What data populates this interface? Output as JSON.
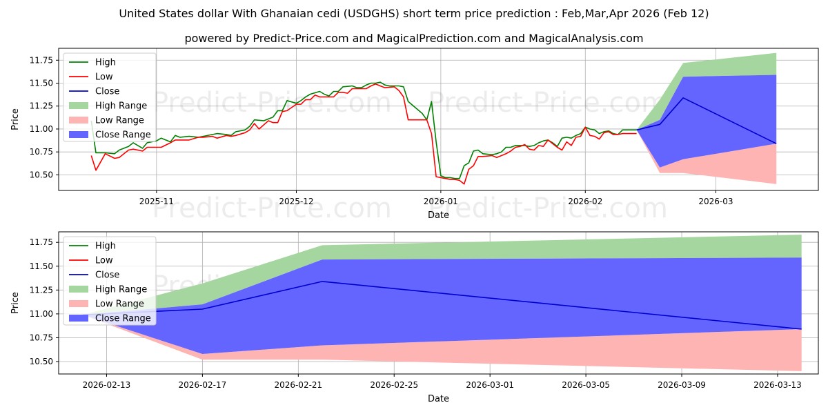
{
  "title": "United States dollar With Ghanaian cedi (USDGHS) short term price prediction : Feb,Mar,Apr 2026 (Feb 12)",
  "subtitle": "powered by Predict-Price.com and MagicalPrediction.com and MagicalAnalysis.com",
  "watermark": "Predict-Price.com",
  "colors": {
    "high": "#008000",
    "low": "#ff0000",
    "close": "#0000cd",
    "high_range": "#a5d6a0",
    "low_range": "#ffb4b4",
    "close_range": "#6464ff",
    "grid": "#b0b0b0"
  },
  "chart_data": [
    {
      "type": "line",
      "name": "history-and-forecast",
      "xlabel": "Date",
      "ylabel": "Price",
      "ylim": [
        10.33,
        11.88
      ],
      "xlim": [
        "2025-10-11",
        "2026-03-23"
      ],
      "grid": true,
      "legend_position": "top-left",
      "yticks": [
        10.5,
        10.75,
        11.0,
        11.25,
        11.5,
        11.75
      ],
      "ytick_labels": [
        "10.50",
        "10.75",
        "11.00",
        "11.25",
        "11.50",
        "11.75"
      ],
      "xticks": [
        "2025-11-01",
        "2025-12-01",
        "2026-01-01",
        "2026-02-01",
        "2026-03-01"
      ],
      "xtick_labels": [
        "2025-11",
        "2025-12",
        "2026-01",
        "2026-02",
        "2026-03"
      ],
      "legend": [
        "High",
        "Low",
        "Close",
        "High Range",
        "Low Range",
        "Close Range"
      ],
      "high_series": [
        [
          "2025-10-18",
          11.09
        ],
        [
          "2025-10-19",
          10.74
        ],
        [
          "2025-10-21",
          10.74
        ],
        [
          "2025-10-23",
          10.73
        ],
        [
          "2025-10-24",
          10.77
        ],
        [
          "2025-10-26",
          10.81
        ],
        [
          "2025-10-27",
          10.85
        ],
        [
          "2025-10-29",
          10.79
        ],
        [
          "2025-10-30",
          10.85
        ],
        [
          "2025-11-01",
          10.87
        ],
        [
          "2025-11-02",
          10.9
        ],
        [
          "2025-11-04",
          10.86
        ],
        [
          "2025-11-05",
          10.93
        ],
        [
          "2025-11-06",
          10.91
        ],
        [
          "2025-11-08",
          10.92
        ],
        [
          "2025-11-10",
          10.91
        ],
        [
          "2025-11-11",
          10.92
        ],
        [
          "2025-11-13",
          10.94
        ],
        [
          "2025-11-14",
          10.95
        ],
        [
          "2025-11-16",
          10.94
        ],
        [
          "2025-11-17",
          10.93
        ],
        [
          "2025-11-18",
          10.97
        ],
        [
          "2025-11-20",
          10.99
        ],
        [
          "2025-11-21",
          11.03
        ],
        [
          "2025-11-22",
          11.1
        ],
        [
          "2025-11-24",
          11.09
        ],
        [
          "2025-11-26",
          11.13
        ],
        [
          "2025-11-27",
          11.2
        ],
        [
          "2025-11-28",
          11.2
        ],
        [
          "2025-11-29",
          11.31
        ],
        [
          "2025-12-01",
          11.28
        ],
        [
          "2025-12-02",
          11.31
        ],
        [
          "2025-12-03",
          11.35
        ],
        [
          "2025-12-04",
          11.38
        ],
        [
          "2025-12-06",
          11.41
        ],
        [
          "2025-12-07",
          11.38
        ],
        [
          "2025-12-08",
          11.36
        ],
        [
          "2025-12-09",
          11.41
        ],
        [
          "2025-12-10",
          11.41
        ],
        [
          "2025-12-11",
          11.46
        ],
        [
          "2025-12-13",
          11.47
        ],
        [
          "2025-12-14",
          11.45
        ],
        [
          "2025-12-15",
          11.45
        ],
        [
          "2025-12-16",
          11.48
        ],
        [
          "2025-12-17",
          11.5
        ],
        [
          "2025-12-18",
          11.5
        ],
        [
          "2025-12-19",
          11.51
        ],
        [
          "2025-12-20",
          11.48
        ],
        [
          "2025-12-21",
          11.47
        ],
        [
          "2025-12-23",
          11.47
        ],
        [
          "2025-12-24",
          11.46
        ],
        [
          "2025-12-25",
          11.3
        ],
        [
          "2025-12-28",
          11.17
        ],
        [
          "2025-12-29",
          11.1
        ],
        [
          "2025-12-30",
          11.3
        ],
        [
          "2025-12-31",
          10.86
        ],
        [
          "2026-01-01",
          10.49
        ],
        [
          "2026-01-02",
          10.47
        ],
        [
          "2026-01-03",
          10.47
        ],
        [
          "2026-01-04",
          10.46
        ],
        [
          "2026-01-05",
          10.46
        ],
        [
          "2026-01-06",
          10.6
        ],
        [
          "2026-01-07",
          10.63
        ],
        [
          "2026-01-08",
          10.76
        ],
        [
          "2026-01-09",
          10.77
        ],
        [
          "2026-01-10",
          10.73
        ],
        [
          "2026-01-12",
          10.72
        ],
        [
          "2026-01-13",
          10.73
        ],
        [
          "2026-01-14",
          10.75
        ],
        [
          "2026-01-15",
          10.8
        ],
        [
          "2026-01-16",
          10.8
        ],
        [
          "2026-01-17",
          10.82
        ],
        [
          "2026-01-19",
          10.82
        ],
        [
          "2026-01-20",
          10.81
        ],
        [
          "2026-01-21",
          10.82
        ],
        [
          "2026-01-22",
          10.85
        ],
        [
          "2026-01-23",
          10.87
        ],
        [
          "2026-01-24",
          10.88
        ],
        [
          "2026-01-25",
          10.85
        ],
        [
          "2026-01-26",
          10.81
        ],
        [
          "2026-01-27",
          10.9
        ],
        [
          "2026-01-28",
          10.91
        ],
        [
          "2026-01-29",
          10.9
        ],
        [
          "2026-01-30",
          10.93
        ],
        [
          "2026-01-31",
          10.95
        ],
        [
          "2026-02-01",
          11.02
        ],
        [
          "2026-02-02",
          11.0
        ],
        [
          "2026-02-03",
          10.99
        ],
        [
          "2026-02-04",
          10.95
        ],
        [
          "2026-02-05",
          10.97
        ],
        [
          "2026-02-06",
          10.98
        ],
        [
          "2026-02-07",
          10.95
        ],
        [
          "2026-02-08",
          10.94
        ],
        [
          "2026-02-09",
          10.99
        ],
        [
          "2026-02-11",
          10.99
        ],
        [
          "2026-02-12",
          10.99
        ]
      ],
      "low_series": [
        [
          "2025-10-18",
          10.71
        ],
        [
          "2025-10-19",
          10.55
        ],
        [
          "2025-10-21",
          10.73
        ],
        [
          "2025-10-23",
          10.68
        ],
        [
          "2025-10-24",
          10.69
        ],
        [
          "2025-10-26",
          10.77
        ],
        [
          "2025-10-27",
          10.78
        ],
        [
          "2025-10-29",
          10.76
        ],
        [
          "2025-10-30",
          10.8
        ],
        [
          "2025-11-01",
          10.8
        ],
        [
          "2025-11-02",
          10.8
        ],
        [
          "2025-11-04",
          10.85
        ],
        [
          "2025-11-05",
          10.88
        ],
        [
          "2025-11-06",
          10.88
        ],
        [
          "2025-11-08",
          10.88
        ],
        [
          "2025-11-10",
          10.91
        ],
        [
          "2025-11-11",
          10.91
        ],
        [
          "2025-11-13",
          10.92
        ],
        [
          "2025-11-14",
          10.9
        ],
        [
          "2025-11-16",
          10.93
        ],
        [
          "2025-11-17",
          10.92
        ],
        [
          "2025-11-18",
          10.93
        ],
        [
          "2025-11-20",
          10.96
        ],
        [
          "2025-11-21",
          10.99
        ],
        [
          "2025-11-22",
          11.06
        ],
        [
          "2025-11-23",
          11.0
        ],
        [
          "2025-11-25",
          11.09
        ],
        [
          "2025-11-26",
          11.07
        ],
        [
          "2025-11-27",
          11.07
        ],
        [
          "2025-11-28",
          11.19
        ],
        [
          "2025-11-29",
          11.2
        ],
        [
          "2025-12-01",
          11.27
        ],
        [
          "2025-12-02",
          11.27
        ],
        [
          "2025-12-03",
          11.32
        ],
        [
          "2025-12-04",
          11.32
        ],
        [
          "2025-12-05",
          11.37
        ],
        [
          "2025-12-06",
          11.35
        ],
        [
          "2025-12-08",
          11.35
        ],
        [
          "2025-12-09",
          11.35
        ],
        [
          "2025-12-10",
          11.4
        ],
        [
          "2025-12-11",
          11.4
        ],
        [
          "2025-12-12",
          11.39
        ],
        [
          "2025-12-13",
          11.44
        ],
        [
          "2025-12-15",
          11.44
        ],
        [
          "2025-12-16",
          11.44
        ],
        [
          "2025-12-17",
          11.47
        ],
        [
          "2025-12-18",
          11.49
        ],
        [
          "2025-12-19",
          11.47
        ],
        [
          "2025-12-20",
          11.45
        ],
        [
          "2025-12-22",
          11.46
        ],
        [
          "2025-12-23",
          11.42
        ],
        [
          "2025-12-24",
          11.35
        ],
        [
          "2025-12-25",
          11.1
        ],
        [
          "2025-12-29",
          11.1
        ],
        [
          "2025-12-30",
          10.95
        ],
        [
          "2025-12-31",
          10.48
        ],
        [
          "2026-01-02",
          10.46
        ],
        [
          "2026-01-03",
          10.45
        ],
        [
          "2026-01-04",
          10.45
        ],
        [
          "2026-01-05",
          10.44
        ],
        [
          "2026-01-06",
          10.4
        ],
        [
          "2026-01-07",
          10.56
        ],
        [
          "2026-01-08",
          10.6
        ],
        [
          "2026-01-09",
          10.7
        ],
        [
          "2026-01-10",
          10.7
        ],
        [
          "2026-01-12",
          10.71
        ],
        [
          "2026-01-13",
          10.69
        ],
        [
          "2026-01-14",
          10.71
        ],
        [
          "2026-01-15",
          10.73
        ],
        [
          "2026-01-16",
          10.76
        ],
        [
          "2026-01-17",
          10.8
        ],
        [
          "2026-01-18",
          10.81
        ],
        [
          "2026-01-19",
          10.83
        ],
        [
          "2026-01-20",
          10.78
        ],
        [
          "2026-01-21",
          10.77
        ],
        [
          "2026-01-22",
          10.82
        ],
        [
          "2026-01-23",
          10.81
        ],
        [
          "2026-01-24",
          10.88
        ],
        [
          "2026-01-25",
          10.84
        ],
        [
          "2026-01-26",
          10.8
        ],
        [
          "2026-01-27",
          10.77
        ],
        [
          "2026-01-28",
          10.86
        ],
        [
          "2026-01-29",
          10.82
        ],
        [
          "2026-01-30",
          10.91
        ],
        [
          "2026-01-31",
          10.92
        ],
        [
          "2026-02-01",
          11.02
        ],
        [
          "2026-02-02",
          10.93
        ],
        [
          "2026-02-03",
          10.92
        ],
        [
          "2026-02-04",
          10.89
        ],
        [
          "2026-02-05",
          10.96
        ],
        [
          "2026-02-06",
          10.97
        ],
        [
          "2026-02-07",
          10.94
        ],
        [
          "2026-02-08",
          10.94
        ],
        [
          "2026-02-09",
          10.95
        ],
        [
          "2026-02-11",
          10.95
        ],
        [
          "2026-02-12",
          10.95
        ]
      ],
      "forecast_dates": [
        "2026-02-12",
        "2026-02-17",
        "2026-02-22",
        "2026-03-14"
      ],
      "close_forecast": [
        10.99,
        11.05,
        11.34,
        10.84
      ],
      "high_range_upper": [
        10.99,
        11.32,
        11.72,
        11.83
      ],
      "close_range_upper": [
        10.99,
        11.1,
        11.57,
        11.59
      ],
      "close_range_lower": [
        10.99,
        10.58,
        10.67,
        10.84
      ],
      "low_range_lower": [
        10.99,
        10.52,
        10.52,
        10.4
      ]
    },
    {
      "type": "area",
      "name": "forecast-zoom",
      "xlabel": "Date",
      "ylabel": "Price",
      "ylim": [
        10.37,
        11.86
      ],
      "xlim": [
        "2026-02-11",
        "2026-03-14.7"
      ],
      "grid": true,
      "legend_position": "top-left",
      "yticks": [
        10.5,
        10.75,
        11.0,
        11.25,
        11.5,
        11.75
      ],
      "ytick_labels": [
        "10.50",
        "10.75",
        "11.00",
        "11.25",
        "11.50",
        "11.75"
      ],
      "xticks": [
        "2026-02-13",
        "2026-02-17",
        "2026-02-21",
        "2026-02-25",
        "2026-03-01",
        "2026-03-05",
        "2026-03-09",
        "2026-03-13"
      ],
      "xtick_labels": [
        "2026-02-13",
        "2026-02-17",
        "2026-02-21",
        "2026-02-25",
        "2026-03-01",
        "2026-03-05",
        "2026-03-09",
        "2026-03-13"
      ],
      "legend": [
        "High",
        "Low",
        "Close",
        "High Range",
        "Low Range",
        "Close Range"
      ],
      "forecast_dates": [
        "2026-02-12",
        "2026-02-17",
        "2026-02-22",
        "2026-03-14"
      ],
      "close_forecast": [
        10.99,
        11.05,
        11.34,
        10.84
      ],
      "high_range_upper": [
        10.99,
        11.32,
        11.72,
        11.83
      ],
      "close_range_upper": [
        10.99,
        11.1,
        11.57,
        11.59
      ],
      "close_range_lower": [
        10.99,
        10.58,
        10.67,
        10.84
      ],
      "low_range_lower": [
        10.99,
        10.52,
        10.52,
        10.4
      ]
    }
  ]
}
